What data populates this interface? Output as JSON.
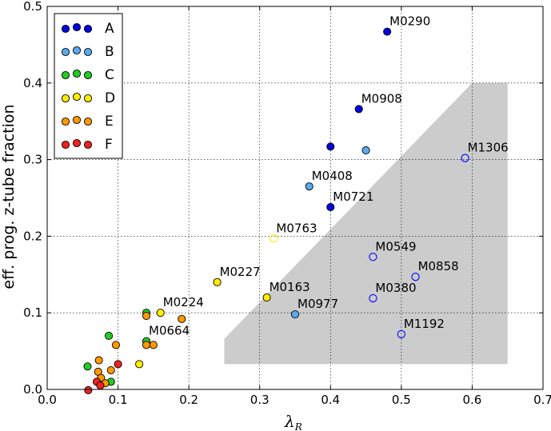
{
  "chart_data": {
    "type": "scatter",
    "title": "",
    "xlabel": "λ",
    "xlabel_subscript": "R",
    "ylabel": "eff. prog. z-tube fraction",
    "xlim": [
      0.0,
      0.7
    ],
    "ylim": [
      0.0,
      0.5
    ],
    "xticks": [
      "0.0",
      "0.1",
      "0.2",
      "0.3",
      "0.4",
      "0.5",
      "0.6",
      "0.7"
    ],
    "yticks": [
      "0.0",
      "0.1",
      "0.2",
      "0.3",
      "0.4",
      "0.5"
    ],
    "grid": true,
    "legend_position": "top-left",
    "shaded_region": [
      [
        0.25,
        0.033
      ],
      [
        0.25,
        0.066
      ],
      [
        0.6,
        0.4
      ],
      [
        0.65,
        0.4
      ],
      [
        0.65,
        0.033
      ]
    ],
    "series": [
      {
        "name": "A",
        "color": "#0000dd",
        "points": [
          {
            "x": 0.48,
            "y": 0.467
          },
          {
            "x": 0.44,
            "y": 0.366
          },
          {
            "x": 0.4,
            "y": 0.317
          },
          {
            "x": 0.4,
            "y": 0.238
          }
        ]
      },
      {
        "name": "B",
        "color": "#5aaaee",
        "points": [
          {
            "x": 0.45,
            "y": 0.312
          },
          {
            "x": 0.37,
            "y": 0.265
          },
          {
            "x": 0.35,
            "y": 0.098
          }
        ]
      },
      {
        "name": "C",
        "color": "#22cc22",
        "points": [
          {
            "x": 0.087,
            "y": 0.07
          },
          {
            "x": 0.14,
            "y": 0.1
          },
          {
            "x": 0.14,
            "y": 0.063
          },
          {
            "x": 0.057,
            "y": 0.03
          },
          {
            "x": 0.09,
            "y": 0.01
          }
        ]
      },
      {
        "name": "D",
        "color": "#ffee00",
        "points": [
          {
            "x": 0.24,
            "y": 0.14
          },
          {
            "x": 0.31,
            "y": 0.12
          },
          {
            "x": 0.16,
            "y": 0.1
          },
          {
            "x": 0.13,
            "y": 0.033
          }
        ]
      },
      {
        "name": "E",
        "color": "#ff9900",
        "points": [
          {
            "x": 0.14,
            "y": 0.096
          },
          {
            "x": 0.19,
            "y": 0.092
          },
          {
            "x": 0.14,
            "y": 0.058
          },
          {
            "x": 0.15,
            "y": 0.058
          },
          {
            "x": 0.097,
            "y": 0.058
          },
          {
            "x": 0.073,
            "y": 0.038
          },
          {
            "x": 0.072,
            "y": 0.023
          },
          {
            "x": 0.09,
            "y": 0.025
          },
          {
            "x": 0.076,
            "y": 0.015
          },
          {
            "x": 0.082,
            "y": 0.008
          }
        ]
      },
      {
        "name": "F",
        "color": "#ee2222",
        "points": [
          {
            "x": 0.1,
            "y": 0.033
          },
          {
            "x": 0.07,
            "y": 0.01
          },
          {
            "x": 0.075,
            "y": 0.005
          },
          {
            "x": 0.058,
            "y": -0.001
          }
        ]
      },
      {
        "name": "open",
        "color": "#0000ff",
        "open": true,
        "points": [
          {
            "x": 0.32,
            "y": 0.197,
            "color": "#ffee00"
          },
          {
            "x": 0.59,
            "y": 0.302
          },
          {
            "x": 0.46,
            "y": 0.173
          },
          {
            "x": 0.52,
            "y": 0.147
          },
          {
            "x": 0.46,
            "y": 0.119
          },
          {
            "x": 0.5,
            "y": 0.072
          }
        ]
      }
    ],
    "annotations": [
      {
        "text": "M0290",
        "x": 0.48,
        "y": 0.467
      },
      {
        "text": "M0908",
        "x": 0.44,
        "y": 0.366
      },
      {
        "text": "M1306",
        "x": 0.59,
        "y": 0.302
      },
      {
        "text": "M0408",
        "x": 0.37,
        "y": 0.265
      },
      {
        "text": "M0721",
        "x": 0.4,
        "y": 0.238
      },
      {
        "text": "M0763",
        "x": 0.32,
        "y": 0.197
      },
      {
        "text": "M0549",
        "x": 0.46,
        "y": 0.173
      },
      {
        "text": "M0858",
        "x": 0.52,
        "y": 0.147
      },
      {
        "text": "M0227",
        "x": 0.24,
        "y": 0.14
      },
      {
        "text": "M0163",
        "x": 0.31,
        "y": 0.12
      },
      {
        "text": "M0380",
        "x": 0.46,
        "y": 0.119
      },
      {
        "text": "M0224",
        "x": 0.16,
        "y": 0.1
      },
      {
        "text": "M0977",
        "x": 0.35,
        "y": 0.098
      },
      {
        "text": "M0664",
        "x": 0.14,
        "y": 0.063
      },
      {
        "text": "M1192",
        "x": 0.5,
        "y": 0.072
      }
    ],
    "legend": [
      {
        "label": "A",
        "color": "#0000dd"
      },
      {
        "label": "B",
        "color": "#5aaaee"
      },
      {
        "label": "C",
        "color": "#22cc22"
      },
      {
        "label": "D",
        "color": "#ffee00"
      },
      {
        "label": "E",
        "color": "#ff9900"
      },
      {
        "label": "F",
        "color": "#ee2222"
      }
    ]
  }
}
